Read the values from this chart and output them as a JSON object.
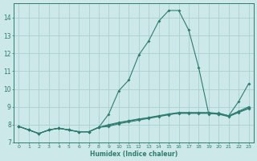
{
  "x": [
    0,
    1,
    2,
    3,
    4,
    5,
    6,
    7,
    8,
    9,
    10,
    11,
    12,
    13,
    14,
    15,
    16,
    17,
    18,
    19,
    20,
    21,
    22,
    23
  ],
  "line1": [
    7.9,
    7.7,
    7.5,
    7.7,
    7.8,
    7.7,
    7.6,
    7.6,
    7.85,
    8.6,
    9.9,
    10.5,
    11.9,
    12.7,
    13.8,
    14.4,
    14.4,
    13.3,
    11.2,
    8.6,
    8.65,
    8.5,
    9.3,
    10.3
  ],
  "line2": [
    7.9,
    7.7,
    7.5,
    7.7,
    7.8,
    7.7,
    7.6,
    7.6,
    7.85,
    7.9,
    8.05,
    8.15,
    8.25,
    8.35,
    8.45,
    8.55,
    8.65,
    8.65,
    8.65,
    8.65,
    8.6,
    8.5,
    8.75,
    9.0
  ],
  "line3": [
    7.9,
    7.7,
    7.5,
    7.7,
    7.8,
    7.7,
    7.6,
    7.6,
    7.85,
    7.95,
    8.1,
    8.2,
    8.3,
    8.4,
    8.5,
    8.6,
    8.68,
    8.68,
    8.68,
    8.68,
    8.63,
    8.48,
    8.72,
    8.93
  ],
  "line4": [
    7.9,
    7.7,
    7.5,
    7.7,
    7.8,
    7.7,
    7.6,
    7.6,
    7.85,
    8.0,
    8.12,
    8.22,
    8.32,
    8.38,
    8.48,
    8.58,
    8.63,
    8.63,
    8.63,
    8.63,
    8.58,
    8.45,
    8.68,
    8.9
  ],
  "line_color": "#2e7d6e",
  "bg_color": "#cce8e8",
  "grid_color": "#aacfcf",
  "xlabel": "Humidex (Indice chaleur)",
  "xlim": [
    -0.5,
    23.5
  ],
  "ylim": [
    7.0,
    14.8
  ],
  "yticks": [
    7,
    8,
    9,
    10,
    11,
    12,
    13,
    14
  ],
  "xticks": [
    0,
    1,
    2,
    3,
    4,
    5,
    6,
    7,
    8,
    9,
    10,
    11,
    12,
    13,
    14,
    15,
    16,
    17,
    18,
    19,
    20,
    21,
    22,
    23
  ]
}
